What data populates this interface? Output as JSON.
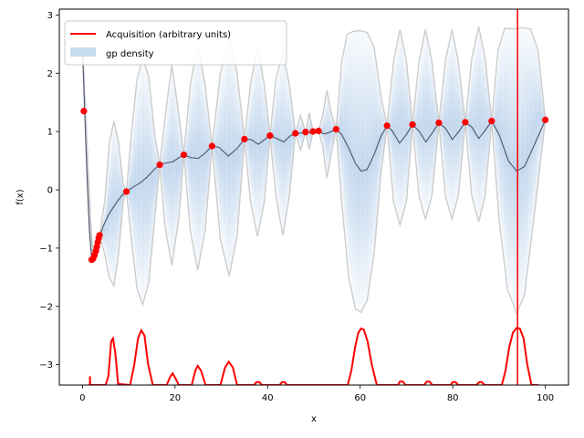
{
  "chart_data": {
    "type": "line",
    "xlabel": "x",
    "ylabel": "f(x)",
    "xlim": [
      -5,
      105
    ],
    "ylim": [
      -3.35,
      3.1
    ],
    "x_ticks": [
      0,
      20,
      40,
      60,
      80,
      100
    ],
    "y_ticks": [
      -3,
      -2,
      -1,
      0,
      1,
      2,
      3
    ],
    "legend": {
      "placement": "top-left",
      "entries": [
        {
          "label": "Acquisition (arbitrary units)",
          "color": "#ff0000",
          "kind": "line"
        },
        {
          "label": "gp density",
          "color": "#c6dbef",
          "kind": "patch"
        }
      ]
    },
    "observations": {
      "name": "observations",
      "color": "#ff0000",
      "points": [
        [
          0.3,
          1.35
        ],
        [
          2.0,
          -1.2
        ],
        [
          2.3,
          -1.18
        ],
        [
          2.6,
          -1.12
        ],
        [
          2.9,
          -1.05
        ],
        [
          3.1,
          -0.98
        ],
        [
          3.3,
          -0.9
        ],
        [
          3.5,
          -0.83
        ],
        [
          3.7,
          -0.78
        ],
        [
          9.5,
          -0.03
        ],
        [
          16.7,
          0.43
        ],
        [
          21.9,
          0.6
        ],
        [
          28.0,
          0.75
        ],
        [
          35.0,
          0.87
        ],
        [
          40.5,
          0.93
        ],
        [
          46.0,
          0.97
        ],
        [
          48.2,
          0.99
        ],
        [
          49.8,
          1.0
        ],
        [
          51.0,
          1.01
        ],
        [
          54.8,
          1.04
        ],
        [
          65.8,
          1.1
        ],
        [
          71.3,
          1.12
        ],
        [
          77.0,
          1.15
        ],
        [
          82.7,
          1.16
        ],
        [
          88.4,
          1.18
        ],
        [
          100.0,
          1.2
        ]
      ]
    },
    "gp_mean": {
      "color": "#4a5568",
      "points": [
        [
          0,
          2.45
        ],
        [
          0.5,
          1.3
        ],
        [
          1.0,
          0.2
        ],
        [
          1.5,
          -0.7
        ],
        [
          2.0,
          -1.2
        ],
        [
          2.6,
          -1.1
        ],
        [
          3.5,
          -0.85
        ],
        [
          4.5,
          -0.62
        ],
        [
          5.5,
          -0.45
        ],
        [
          6.5,
          -0.32
        ],
        [
          7.5,
          -0.2
        ],
        [
          8.5,
          -0.1
        ],
        [
          9.5,
          -0.03
        ],
        [
          11.0,
          0.05
        ],
        [
          12.5,
          0.12
        ],
        [
          14.0,
          0.22
        ],
        [
          15.5,
          0.35
        ],
        [
          16.7,
          0.43
        ],
        [
          18.0,
          0.46
        ],
        [
          19.5,
          0.48
        ],
        [
          20.8,
          0.55
        ],
        [
          21.9,
          0.6
        ],
        [
          23.5,
          0.55
        ],
        [
          25.0,
          0.54
        ],
        [
          26.5,
          0.63
        ],
        [
          28.0,
          0.75
        ],
        [
          29.5,
          0.73
        ],
        [
          31.5,
          0.58
        ],
        [
          33.3,
          0.7
        ],
        [
          35.0,
          0.87
        ],
        [
          36.5,
          0.86
        ],
        [
          38.0,
          0.78
        ],
        [
          39.3,
          0.86
        ],
        [
          40.5,
          0.93
        ],
        [
          42.0,
          0.88
        ],
        [
          43.5,
          0.82
        ],
        [
          44.8,
          0.92
        ],
        [
          46.0,
          0.97
        ],
        [
          47.1,
          0.97
        ],
        [
          48.2,
          0.99
        ],
        [
          49.0,
          0.98
        ],
        [
          49.8,
          1.0
        ],
        [
          51.0,
          1.01
        ],
        [
          52.1,
          0.96
        ],
        [
          53.2,
          0.98
        ],
        [
          54.8,
          1.04
        ],
        [
          56.0,
          0.95
        ],
        [
          57.5,
          0.72
        ],
        [
          59.0,
          0.45
        ],
        [
          60.2,
          0.32
        ],
        [
          61.5,
          0.35
        ],
        [
          63.0,
          0.6
        ],
        [
          64.5,
          0.92
        ],
        [
          65.8,
          1.1
        ],
        [
          67.0,
          1.0
        ],
        [
          68.5,
          0.8
        ],
        [
          70.0,
          0.95
        ],
        [
          71.3,
          1.12
        ],
        [
          72.8,
          1.0
        ],
        [
          74.2,
          0.82
        ],
        [
          75.6,
          0.98
        ],
        [
          77.0,
          1.15
        ],
        [
          78.5,
          1.05
        ],
        [
          79.9,
          0.86
        ],
        [
          81.3,
          1.0
        ],
        [
          82.7,
          1.16
        ],
        [
          84.2,
          1.07
        ],
        [
          85.6,
          0.88
        ],
        [
          87.0,
          1.02
        ],
        [
          88.4,
          1.18
        ],
        [
          90.0,
          0.95
        ],
        [
          92.0,
          0.5
        ],
        [
          93.8,
          0.32
        ],
        [
          95.5,
          0.4
        ],
        [
          97.5,
          0.75
        ],
        [
          100.0,
          1.2
        ]
      ]
    },
    "gp_upper": {
      "color": "#cccccc",
      "points": [
        [
          0,
          2.45
        ],
        [
          0.6,
          1.45
        ],
        [
          1.2,
          0.4
        ],
        [
          1.8,
          -0.6
        ],
        [
          2.3,
          -1.15
        ],
        [
          3.0,
          -1.0
        ],
        [
          3.7,
          -0.78
        ],
        [
          4.8,
          -0.2
        ],
        [
          5.8,
          0.8
        ],
        [
          6.8,
          1.18
        ],
        [
          7.8,
          0.8
        ],
        [
          8.8,
          0.1
        ],
        [
          9.5,
          -0.03
        ],
        [
          10.5,
          0.9
        ],
        [
          11.8,
          1.9
        ],
        [
          13.0,
          2.25
        ],
        [
          14.3,
          1.95
        ],
        [
          15.6,
          0.95
        ],
        [
          16.7,
          0.43
        ],
        [
          17.8,
          1.2
        ],
        [
          19.3,
          2.15
        ],
        [
          20.8,
          1.3
        ],
        [
          21.9,
          0.6
        ],
        [
          23.3,
          1.8
        ],
        [
          24.9,
          2.5
        ],
        [
          26.5,
          1.8
        ],
        [
          28.0,
          0.75
        ],
        [
          29.8,
          2.0
        ],
        [
          31.7,
          2.6
        ],
        [
          33.4,
          2.0
        ],
        [
          35.0,
          0.87
        ],
        [
          36.3,
          1.8
        ],
        [
          37.8,
          2.45
        ],
        [
          39.3,
          1.8
        ],
        [
          40.5,
          0.93
        ],
        [
          41.8,
          1.9
        ],
        [
          43.3,
          2.35
        ],
        [
          44.7,
          1.8
        ],
        [
          46.0,
          0.97
        ],
        [
          47.1,
          1.28
        ],
        [
          48.2,
          0.99
        ],
        [
          49.0,
          1.32
        ],
        [
          49.8,
          1.0
        ],
        [
          51.0,
          1.01
        ],
        [
          51.9,
          1.28
        ],
        [
          52.8,
          1.7
        ],
        [
          53.8,
          1.3
        ],
        [
          54.8,
          1.04
        ],
        [
          56.0,
          2.2
        ],
        [
          57.2,
          2.67
        ],
        [
          58.5,
          2.72
        ],
        [
          60.0,
          2.73
        ],
        [
          61.5,
          2.7
        ],
        [
          63.0,
          2.45
        ],
        [
          64.5,
          1.6
        ],
        [
          65.8,
          1.1
        ],
        [
          67.2,
          2.2
        ],
        [
          68.6,
          2.75
        ],
        [
          70.0,
          2.2
        ],
        [
          71.3,
          1.12
        ],
        [
          72.7,
          2.2
        ],
        [
          74.1,
          2.75
        ],
        [
          75.5,
          2.2
        ],
        [
          77.0,
          1.15
        ],
        [
          78.4,
          2.2
        ],
        [
          79.8,
          2.75
        ],
        [
          81.2,
          2.2
        ],
        [
          82.7,
          1.16
        ],
        [
          84.1,
          2.25
        ],
        [
          85.6,
          2.8
        ],
        [
          87.0,
          2.25
        ],
        [
          88.4,
          1.18
        ],
        [
          89.8,
          2.4
        ],
        [
          91.2,
          2.77
        ],
        [
          93.0,
          2.76
        ],
        [
          95.0,
          2.78
        ],
        [
          96.8,
          2.76
        ],
        [
          98.4,
          2.4
        ],
        [
          100.0,
          1.2
        ]
      ]
    },
    "gp_lower": {
      "color": "#cccccc",
      "points": [
        [
          0,
          2.45
        ],
        [
          0.6,
          1.2
        ],
        [
          1.2,
          0.0
        ],
        [
          1.8,
          -0.9
        ],
        [
          2.3,
          -1.22
        ],
        [
          3.0,
          -1.15
        ],
        [
          3.7,
          -0.78
        ],
        [
          4.8,
          -1.1
        ],
        [
          5.8,
          -1.5
        ],
        [
          6.8,
          -1.65
        ],
        [
          7.8,
          -1.1
        ],
        [
          8.8,
          -0.2
        ],
        [
          9.5,
          -0.03
        ],
        [
          10.5,
          -0.8
        ],
        [
          11.8,
          -1.7
        ],
        [
          13.0,
          -1.97
        ],
        [
          14.3,
          -1.6
        ],
        [
          15.6,
          -0.5
        ],
        [
          16.7,
          0.43
        ],
        [
          17.8,
          -0.6
        ],
        [
          19.3,
          -1.3
        ],
        [
          20.8,
          -0.5
        ],
        [
          21.9,
          0.6
        ],
        [
          23.3,
          -0.7
        ],
        [
          24.9,
          -1.38
        ],
        [
          26.5,
          -0.7
        ],
        [
          28.0,
          0.75
        ],
        [
          29.8,
          -0.85
        ],
        [
          31.7,
          -1.48
        ],
        [
          33.4,
          -0.8
        ],
        [
          35.0,
          0.87
        ],
        [
          36.3,
          -0.2
        ],
        [
          37.8,
          -0.8
        ],
        [
          39.3,
          -0.2
        ],
        [
          40.5,
          0.93
        ],
        [
          41.8,
          -0.1
        ],
        [
          43.3,
          -0.78
        ],
        [
          44.7,
          -0.1
        ],
        [
          46.0,
          0.97
        ],
        [
          47.1,
          0.68
        ],
        [
          48.2,
          0.99
        ],
        [
          49.0,
          0.7
        ],
        [
          49.8,
          1.0
        ],
        [
          51.0,
          1.01
        ],
        [
          51.9,
          0.75
        ],
        [
          52.8,
          0.2
        ],
        [
          53.8,
          0.65
        ],
        [
          54.8,
          1.04
        ],
        [
          56.0,
          -0.2
        ],
        [
          57.5,
          -1.5
        ],
        [
          59.0,
          -2.05
        ],
        [
          60.2,
          -2.1
        ],
        [
          61.5,
          -1.9
        ],
        [
          63.0,
          -1.1
        ],
        [
          64.5,
          0.3
        ],
        [
          65.8,
          1.1
        ],
        [
          67.2,
          -0.2
        ],
        [
          68.6,
          -0.6
        ],
        [
          70.0,
          -0.2
        ],
        [
          71.3,
          1.12
        ],
        [
          72.7,
          -0.1
        ],
        [
          74.1,
          -0.5
        ],
        [
          75.5,
          -0.1
        ],
        [
          77.0,
          1.15
        ],
        [
          78.4,
          -0.1
        ],
        [
          79.8,
          -0.5
        ],
        [
          81.2,
          -0.1
        ],
        [
          82.7,
          1.16
        ],
        [
          84.1,
          -0.1
        ],
        [
          85.6,
          -0.55
        ],
        [
          87.0,
          -0.1
        ],
        [
          88.4,
          1.18
        ],
        [
          90.0,
          -0.5
        ],
        [
          91.8,
          -1.7
        ],
        [
          93.8,
          -2.12
        ],
        [
          95.5,
          -1.8
        ],
        [
          97.5,
          -0.5
        ],
        [
          100.0,
          1.2
        ]
      ]
    },
    "acquisition": {
      "name": "Acquisition (arbitrary units)",
      "color": "#ff0000",
      "baseline": -3.35,
      "points": [
        [
          1.5,
          -3.35
        ],
        [
          1.6,
          -3.33
        ],
        [
          1.62,
          -3.2
        ],
        [
          1.68,
          -3.35
        ],
        [
          5.0,
          -3.35
        ],
        [
          5.6,
          -3.2
        ],
        [
          6.2,
          -2.6
        ],
        [
          6.6,
          -2.55
        ],
        [
          7.1,
          -2.8
        ],
        [
          7.7,
          -3.33
        ],
        [
          10.3,
          -3.35
        ],
        [
          11.2,
          -3.0
        ],
        [
          12.0,
          -2.55
        ],
        [
          12.7,
          -2.41
        ],
        [
          13.4,
          -2.5
        ],
        [
          14.2,
          -3.0
        ],
        [
          15.2,
          -3.35
        ],
        [
          18.2,
          -3.35
        ],
        [
          19.0,
          -3.2
        ],
        [
          19.5,
          -3.15
        ],
        [
          20.2,
          -3.25
        ],
        [
          20.8,
          -3.35
        ],
        [
          23.6,
          -3.35
        ],
        [
          24.4,
          -3.1
        ],
        [
          24.9,
          -3.02
        ],
        [
          25.6,
          -3.1
        ],
        [
          26.6,
          -3.35
        ],
        [
          29.8,
          -3.35
        ],
        [
          30.8,
          -3.05
        ],
        [
          31.6,
          -2.95
        ],
        [
          32.5,
          -3.05
        ],
        [
          33.4,
          -3.35
        ],
        [
          37.0,
          -3.35
        ],
        [
          37.6,
          -3.3
        ],
        [
          38.2,
          -3.3
        ],
        [
          38.8,
          -3.35
        ],
        [
          42.6,
          -3.35
        ],
        [
          43.1,
          -3.3
        ],
        [
          43.7,
          -3.3
        ],
        [
          44.2,
          -3.35
        ],
        [
          57.3,
          -3.35
        ],
        [
          58.1,
          -3.1
        ],
        [
          58.9,
          -2.7
        ],
        [
          59.6,
          -2.45
        ],
        [
          60.2,
          -2.38
        ],
        [
          60.8,
          -2.4
        ],
        [
          61.6,
          -2.6
        ],
        [
          62.5,
          -3.0
        ],
        [
          63.6,
          -3.35
        ],
        [
          68.1,
          -3.35
        ],
        [
          68.6,
          -3.29
        ],
        [
          69.2,
          -3.29
        ],
        [
          69.8,
          -3.35
        ],
        [
          73.8,
          -3.35
        ],
        [
          74.4,
          -3.29
        ],
        [
          75.0,
          -3.29
        ],
        [
          75.6,
          -3.35
        ],
        [
          79.5,
          -3.35
        ],
        [
          80.0,
          -3.3
        ],
        [
          80.6,
          -3.3
        ],
        [
          81.2,
          -3.35
        ],
        [
          85.1,
          -3.35
        ],
        [
          85.7,
          -3.3
        ],
        [
          86.3,
          -3.3
        ],
        [
          86.9,
          -3.35
        ],
        [
          90.6,
          -3.35
        ],
        [
          91.4,
          -3.1
        ],
        [
          92.2,
          -2.7
        ],
        [
          93.0,
          -2.45
        ],
        [
          93.8,
          -2.37
        ],
        [
          94.5,
          -2.38
        ],
        [
          95.3,
          -2.55
        ],
        [
          96.1,
          -3.0
        ],
        [
          97.0,
          -3.35
        ],
        [
          98.5,
          -3.35
        ]
      ]
    },
    "vline": {
      "x": 94.0,
      "color": "#ff0000"
    }
  }
}
